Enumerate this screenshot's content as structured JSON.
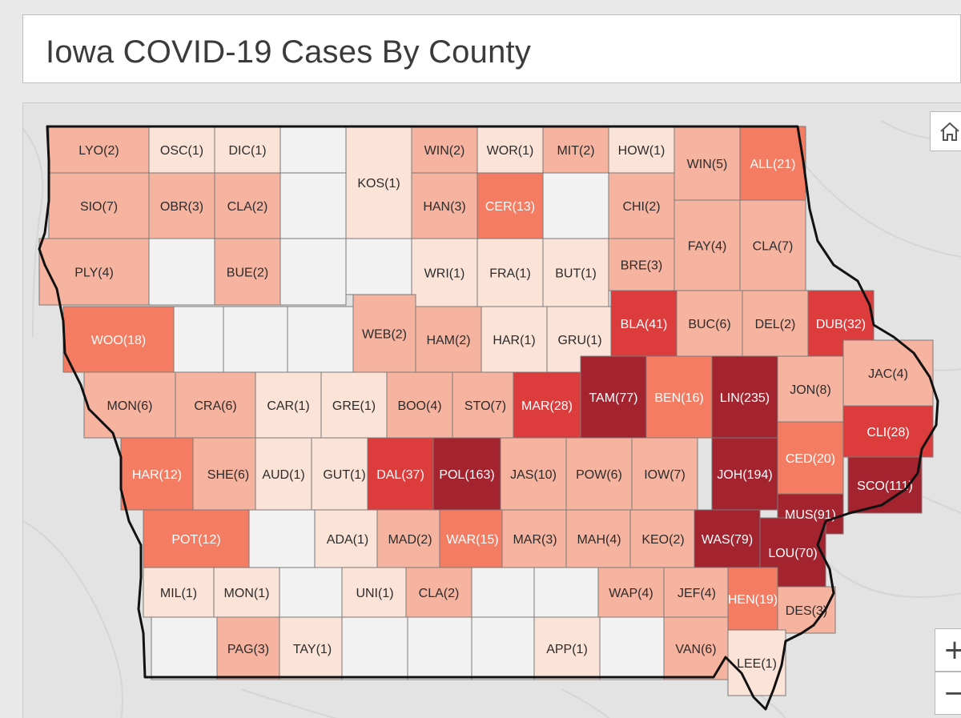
{
  "title": "Iowa COVID-19 Cases By County",
  "colors": {
    "none": "#f2f2f2",
    "c1": "#fce3d8",
    "c2": "#f6b4a0",
    "c3": "#f47c62",
    "c4": "#dc3c3c",
    "c5": "#a3232f",
    "road": "#d5d5d5",
    "state_border": "#111111",
    "county_border": "#7a7a7a"
  },
  "controls": {
    "home_icon": "home-icon",
    "zoom_in": "+",
    "zoom_out": "−"
  },
  "counties": [
    {
      "label": "LYO(2)",
      "cases": 2
    },
    {
      "label": "OSC(1)",
      "cases": 1
    },
    {
      "label": "DIC(1)",
      "cases": 1
    },
    {
      "label": "",
      "cases": 0
    },
    {
      "label": "KOS(1)",
      "cases": 1
    },
    {
      "label": "WIN(2)",
      "cases": 2
    },
    {
      "label": "WOR(1)",
      "cases": 1
    },
    {
      "label": "MIT(2)",
      "cases": 2
    },
    {
      "label": "HOW(1)",
      "cases": 1
    },
    {
      "label": "WIN(5)",
      "cases": 5
    },
    {
      "label": "ALL(21)",
      "cases": 21
    },
    {
      "label": "SIO(7)",
      "cases": 7
    },
    {
      "label": "OBR(3)",
      "cases": 3
    },
    {
      "label": "CLA(2)",
      "cases": 2
    },
    {
      "label": "",
      "cases": 0
    },
    {
      "label": "HAN(3)",
      "cases": 3
    },
    {
      "label": "CER(13)",
      "cases": 13
    },
    {
      "label": "",
      "cases": 0
    },
    {
      "label": "CHI(2)",
      "cases": 2
    },
    {
      "label": "PLY(4)",
      "cases": 4
    },
    {
      "label": "",
      "cases": 0
    },
    {
      "label": "BUE(2)",
      "cases": 2
    },
    {
      "label": "",
      "cases": 0
    },
    {
      "label": "",
      "cases": 0
    },
    {
      "label": "WRI(1)",
      "cases": 1
    },
    {
      "label": "FRA(1)",
      "cases": 1
    },
    {
      "label": "BUT(1)",
      "cases": 1
    },
    {
      "label": "BRE(3)",
      "cases": 3
    },
    {
      "label": "FAY(4)",
      "cases": 4
    },
    {
      "label": "CLA(7)",
      "cases": 7
    },
    {
      "label": "WOO(18)",
      "cases": 18
    },
    {
      "label": "",
      "cases": 0
    },
    {
      "label": "",
      "cases": 0
    },
    {
      "label": "",
      "cases": 0
    },
    {
      "label": "WEB(2)",
      "cases": 2
    },
    {
      "label": "HAM(2)",
      "cases": 2
    },
    {
      "label": "HAR(1)",
      "cases": 1
    },
    {
      "label": "GRU(1)",
      "cases": 1
    },
    {
      "label": "BLA(41)",
      "cases": 41
    },
    {
      "label": "BUC(6)",
      "cases": 6
    },
    {
      "label": "DEL(2)",
      "cases": 2
    },
    {
      "label": "DUB(32)",
      "cases": 32
    },
    {
      "label": "MON(6)",
      "cases": 6
    },
    {
      "label": "CRA(6)",
      "cases": 6
    },
    {
      "label": "CAR(1)",
      "cases": 1
    },
    {
      "label": "GRE(1)",
      "cases": 1
    },
    {
      "label": "BOO(4)",
      "cases": 4
    },
    {
      "label": "STO(7)",
      "cases": 7
    },
    {
      "label": "MAR(28)",
      "cases": 28
    },
    {
      "label": "TAM(77)",
      "cases": 77
    },
    {
      "label": "BEN(16)",
      "cases": 16
    },
    {
      "label": "LIN(235)",
      "cases": 235
    },
    {
      "label": "JON(8)",
      "cases": 8
    },
    {
      "label": "JAC(4)",
      "cases": 4
    },
    {
      "label": "HAR(12)",
      "cases": 12
    },
    {
      "label": "SHE(6)",
      "cases": 6
    },
    {
      "label": "AUD(1)",
      "cases": 1
    },
    {
      "label": "GUT(1)",
      "cases": 1
    },
    {
      "label": "DAL(37)",
      "cases": 37
    },
    {
      "label": "POL(163)",
      "cases": 163
    },
    {
      "label": "JAS(10)",
      "cases": 10
    },
    {
      "label": "POW(6)",
      "cases": 6
    },
    {
      "label": "IOW(7)",
      "cases": 7
    },
    {
      "label": "JOH(194)",
      "cases": 194
    },
    {
      "label": "CED(20)",
      "cases": 20
    },
    {
      "label": "CLI(28)",
      "cases": 28
    },
    {
      "label": "SCO(111)",
      "cases": 111
    },
    {
      "label": "MUS(91)",
      "cases": 91
    },
    {
      "label": "POT(12)",
      "cases": 12
    },
    {
      "label": "",
      "cases": 0
    },
    {
      "label": "ADA(1)",
      "cases": 1
    },
    {
      "label": "MAD(2)",
      "cases": 2
    },
    {
      "label": "WAR(15)",
      "cases": 15
    },
    {
      "label": "MAR(3)",
      "cases": 3
    },
    {
      "label": "MAH(4)",
      "cases": 4
    },
    {
      "label": "KEO(2)",
      "cases": 2
    },
    {
      "label": "WAS(79)",
      "cases": 79
    },
    {
      "label": "LOU(70)",
      "cases": 70
    },
    {
      "label": "MIL(1)",
      "cases": 1
    },
    {
      "label": "MON(1)",
      "cases": 1
    },
    {
      "label": "",
      "cases": 0
    },
    {
      "label": "UNI(1)",
      "cases": 1
    },
    {
      "label": "CLA(2)",
      "cases": 2
    },
    {
      "label": "",
      "cases": 0
    },
    {
      "label": "",
      "cases": 0
    },
    {
      "label": "WAP(4)",
      "cases": 4
    },
    {
      "label": "JEF(4)",
      "cases": 4
    },
    {
      "label": "HEN(19)",
      "cases": 19
    },
    {
      "label": "DES(3)",
      "cases": 3
    },
    {
      "label": "",
      "cases": 0
    },
    {
      "label": "PAG(3)",
      "cases": 3
    },
    {
      "label": "TAY(1)",
      "cases": 1
    },
    {
      "label": "",
      "cases": 0
    },
    {
      "label": "",
      "cases": 0
    },
    {
      "label": "",
      "cases": 0
    },
    {
      "label": "APP(1)",
      "cases": 1
    },
    {
      "label": "",
      "cases": 0
    },
    {
      "label": "VAN(6)",
      "cases": 6
    },
    {
      "label": "LEE(1)",
      "cases": 1
    }
  ]
}
